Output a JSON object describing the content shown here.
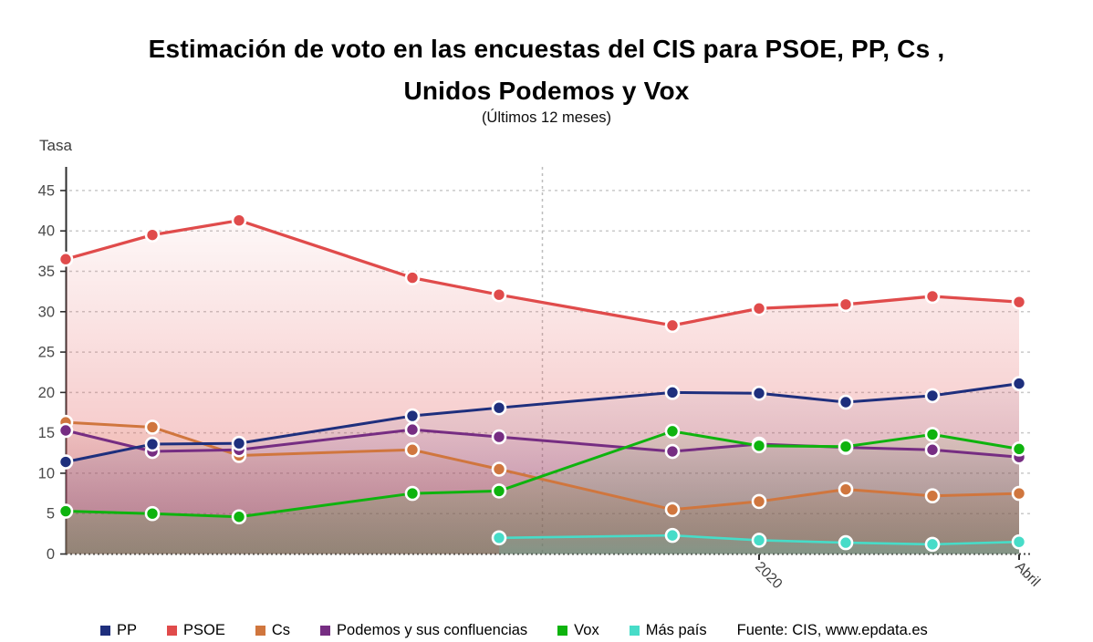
{
  "chart_data": {
    "type": "line",
    "title": "Estimación de voto en las encuestas del CIS para PSOE, PP, Cs , Unidos Podemos y Vox",
    "title_line1": "Estimación de voto en las encuestas del CIS para PSOE, PP, Cs ,",
    "title_line2": "Unidos Podemos y Vox",
    "subtitle": "(Últimos 12 meses)",
    "ylabel": "Tasa",
    "source": "Fuente: CIS, www.epdata.es",
    "ylim": [
      0,
      47
    ],
    "yticks": [
      0,
      5,
      10,
      15,
      20,
      25,
      30,
      35,
      40,
      45
    ],
    "x_slot_count": 12,
    "x_tick_labels": [
      {
        "slot": 9,
        "label": "2020"
      },
      {
        "slot": 12,
        "label": "Abril"
      }
    ],
    "year_separator_between_slots": [
      6,
      7
    ],
    "grid": "horizontal-dashed",
    "legend_position": "bottom",
    "series": [
      {
        "name": "PP",
        "color": "#1e2f7d",
        "values": [
          11.4,
          13.6,
          13.7,
          null,
          17.1,
          18.1,
          null,
          20.0,
          19.9,
          18.8,
          19.6,
          21.1
        ]
      },
      {
        "name": "PSOE",
        "color": "#e04b4b",
        "values": [
          36.5,
          39.5,
          41.3,
          null,
          34.2,
          32.1,
          null,
          28.3,
          30.4,
          30.9,
          31.9,
          31.2
        ]
      },
      {
        "name": "Cs",
        "color": "#d0763e",
        "values": [
          16.3,
          15.7,
          12.2,
          null,
          12.9,
          10.5,
          null,
          5.5,
          6.5,
          8.0,
          7.2,
          7.5
        ]
      },
      {
        "name": "Podemos y sus confluencias",
        "color": "#762d82",
        "values": [
          15.3,
          12.7,
          12.9,
          null,
          15.4,
          14.5,
          null,
          12.7,
          13.6,
          13.2,
          12.9,
          12.0
        ]
      },
      {
        "name": "Vox",
        "color": "#0eb30e",
        "values": [
          5.3,
          5.0,
          4.6,
          null,
          7.5,
          7.8,
          null,
          15.2,
          13.4,
          13.3,
          14.8,
          13.0
        ]
      },
      {
        "name": "Más país",
        "color": "#47dcc8",
        "values": [
          null,
          null,
          null,
          null,
          null,
          2.0,
          null,
          2.3,
          1.7,
          1.4,
          1.2,
          1.5
        ]
      }
    ]
  },
  "colors": {
    "grid": "#c9c9c9",
    "axis": "#2e2e2e",
    "tick_text": "#4a4a4a",
    "baseline": "#474747",
    "separator": "#bdbdbd"
  }
}
